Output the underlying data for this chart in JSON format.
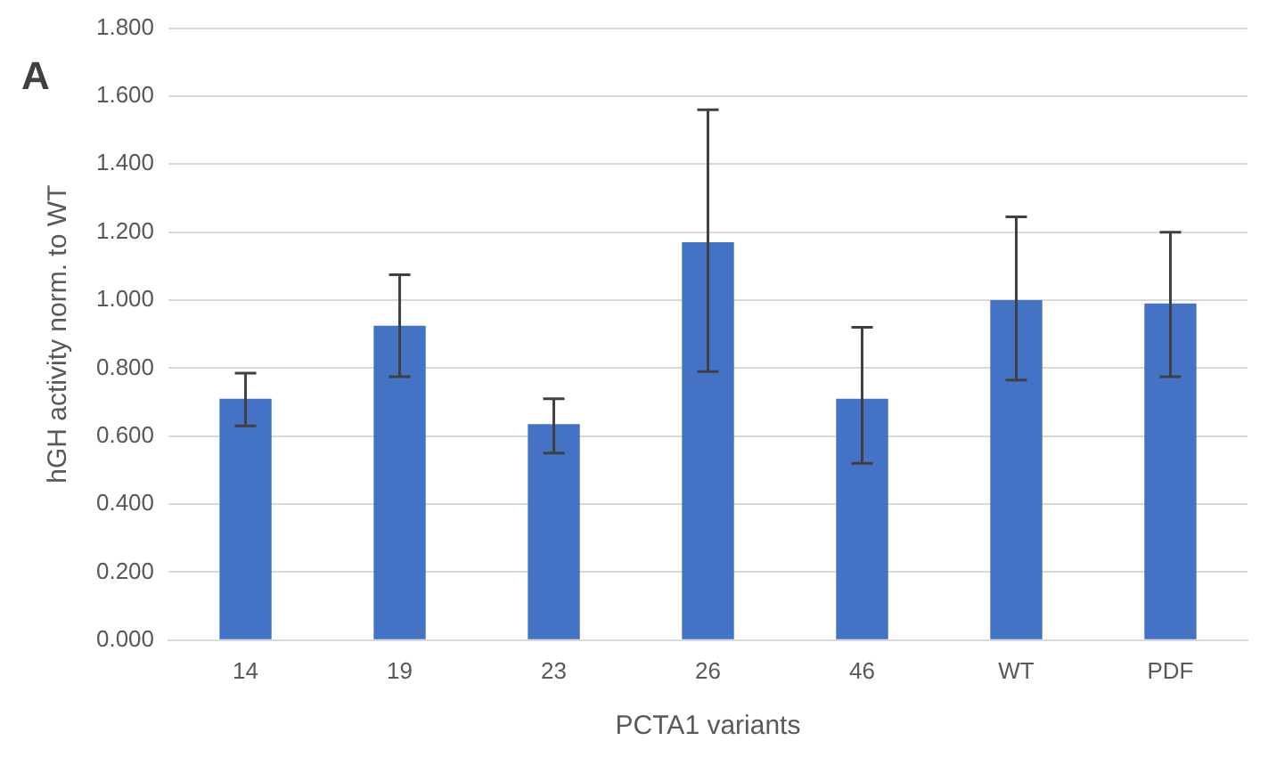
{
  "chart_data": {
    "type": "bar",
    "xlabel": "PCTA1 variants",
    "ylabel": "hGH activity norm. to WT",
    "annotations": [
      "A"
    ],
    "categories": [
      "14",
      "19",
      "23",
      "26",
      "46",
      "WT",
      "PDF"
    ],
    "values": [
      0.71,
      0.925,
      0.635,
      1.17,
      0.71,
      1.0,
      0.99
    ],
    "errors": [
      [
        0.63,
        0.785
      ],
      [
        0.775,
        1.075
      ],
      [
        0.55,
        0.71
      ],
      [
        0.79,
        1.56
      ],
      [
        0.52,
        0.92
      ],
      [
        0.765,
        1.245
      ],
      [
        0.775,
        1.2
      ]
    ],
    "color": "#4472c4",
    "ylim": [
      0,
      1.8
    ],
    "yticks": [
      {
        "value": 0,
        "label": "0.000"
      },
      {
        "value": 0.2,
        "label": "0.200"
      },
      {
        "value": 0.4,
        "label": "0.400"
      },
      {
        "value": 0.6,
        "label": "0.600"
      },
      {
        "value": 0.8,
        "label": "0.800"
      },
      {
        "value": 1,
        "label": "1.000"
      },
      {
        "value": 1.2,
        "label": "1.200"
      },
      {
        "value": 1.4,
        "label": "1.400"
      },
      {
        "value": 1.6,
        "label": "1.600"
      },
      {
        "value": 1.8,
        "label": "1.800"
      }
    ],
    "grid": "y",
    "legend": false
  }
}
